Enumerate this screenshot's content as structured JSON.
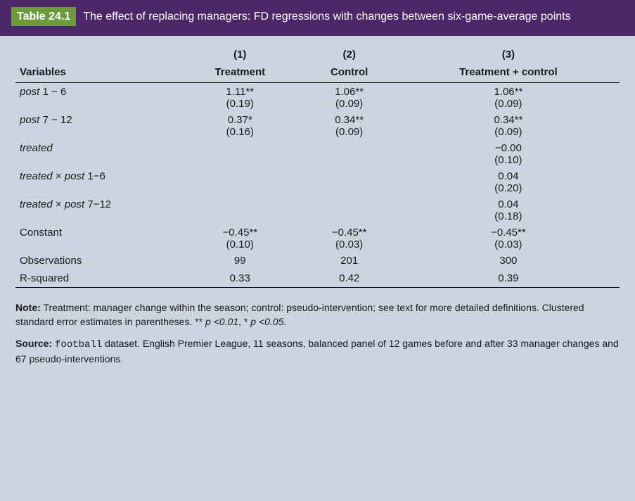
{
  "header": {
    "table_label": "Table 24.1",
    "title_rest": "The effect of replacing managers: FD regressions with changes between six-game-average points"
  },
  "columns": {
    "c1_num": "(1)",
    "c2_num": "(2)",
    "c3_num": "(3)",
    "c1_label": "Treatment",
    "c2_label": "Control",
    "c3_label": "Treatment + control",
    "row_head_label": "Variables"
  },
  "rows": {
    "post1_6": {
      "label_html": "<span class=\"ital\">post</span> 1 − 6",
      "v1": "1.11**",
      "se1": "(0.19)",
      "v2": "1.06**",
      "se2": "(0.09)",
      "v3": "1.06**",
      "se3": "(0.09)"
    },
    "post7_12": {
      "label_html": "<span class=\"ital\">post</span> 7 − 12",
      "v1": "0.37*",
      "se1": "(0.16)",
      "v2": "0.34**",
      "se2": "(0.09)",
      "v3": "0.34**",
      "se3": "(0.09)"
    },
    "treated": {
      "label_html": "<span class=\"ital\">treated</span>",
      "v1": "",
      "se1": "",
      "v2": "",
      "se2": "",
      "v3": "−0.00",
      "se3": "(0.10)"
    },
    "tr_p1_6": {
      "label_html": "<span class=\"ital\">treated</span> × <span class=\"ital\">post</span> 1−6",
      "v1": "",
      "se1": "",
      "v2": "",
      "se2": "",
      "v3": "0.04",
      "se3": "(0.20)"
    },
    "tr_p7_12": {
      "label_html": "<span class=\"ital\">treated</span> × <span class=\"ital\">post</span> 7−12",
      "v1": "",
      "se1": "",
      "v2": "",
      "se2": "",
      "v3": "0.04",
      "se3": "(0.18)"
    },
    "constant": {
      "label_html": "Constant",
      "v1": "−0.45**",
      "se1": "(0.10)",
      "v2": "−0.45**",
      "se2": "(0.03)",
      "v3": "−0.45**",
      "se3": "(0.03)"
    },
    "obs": {
      "label": "Observations",
      "v1": "99",
      "v2": "201",
      "v3": "300"
    },
    "r2": {
      "label": "R-squared",
      "v1": "0.33",
      "v2": "0.42",
      "v3": "0.39"
    }
  },
  "notes": {
    "note_prefix": "Note:",
    "note_body_a": " Treatment: manager change within the season; control: pseudo-intervention; see text for more detailed definitions. Clustered standard error estimates in parentheses. ** ",
    "p_lt_01": "p <0.01",
    "note_body_b": ", * ",
    "p_lt_05": "p <0.05",
    "note_body_c": ".",
    "source_prefix": "Source:",
    "source_code": "football",
    "source_rest": " dataset. English Premier League, 11 seasons, balanced panel of 12 games before and after 33 manager changes and 67 pseudo-interventions."
  }
}
